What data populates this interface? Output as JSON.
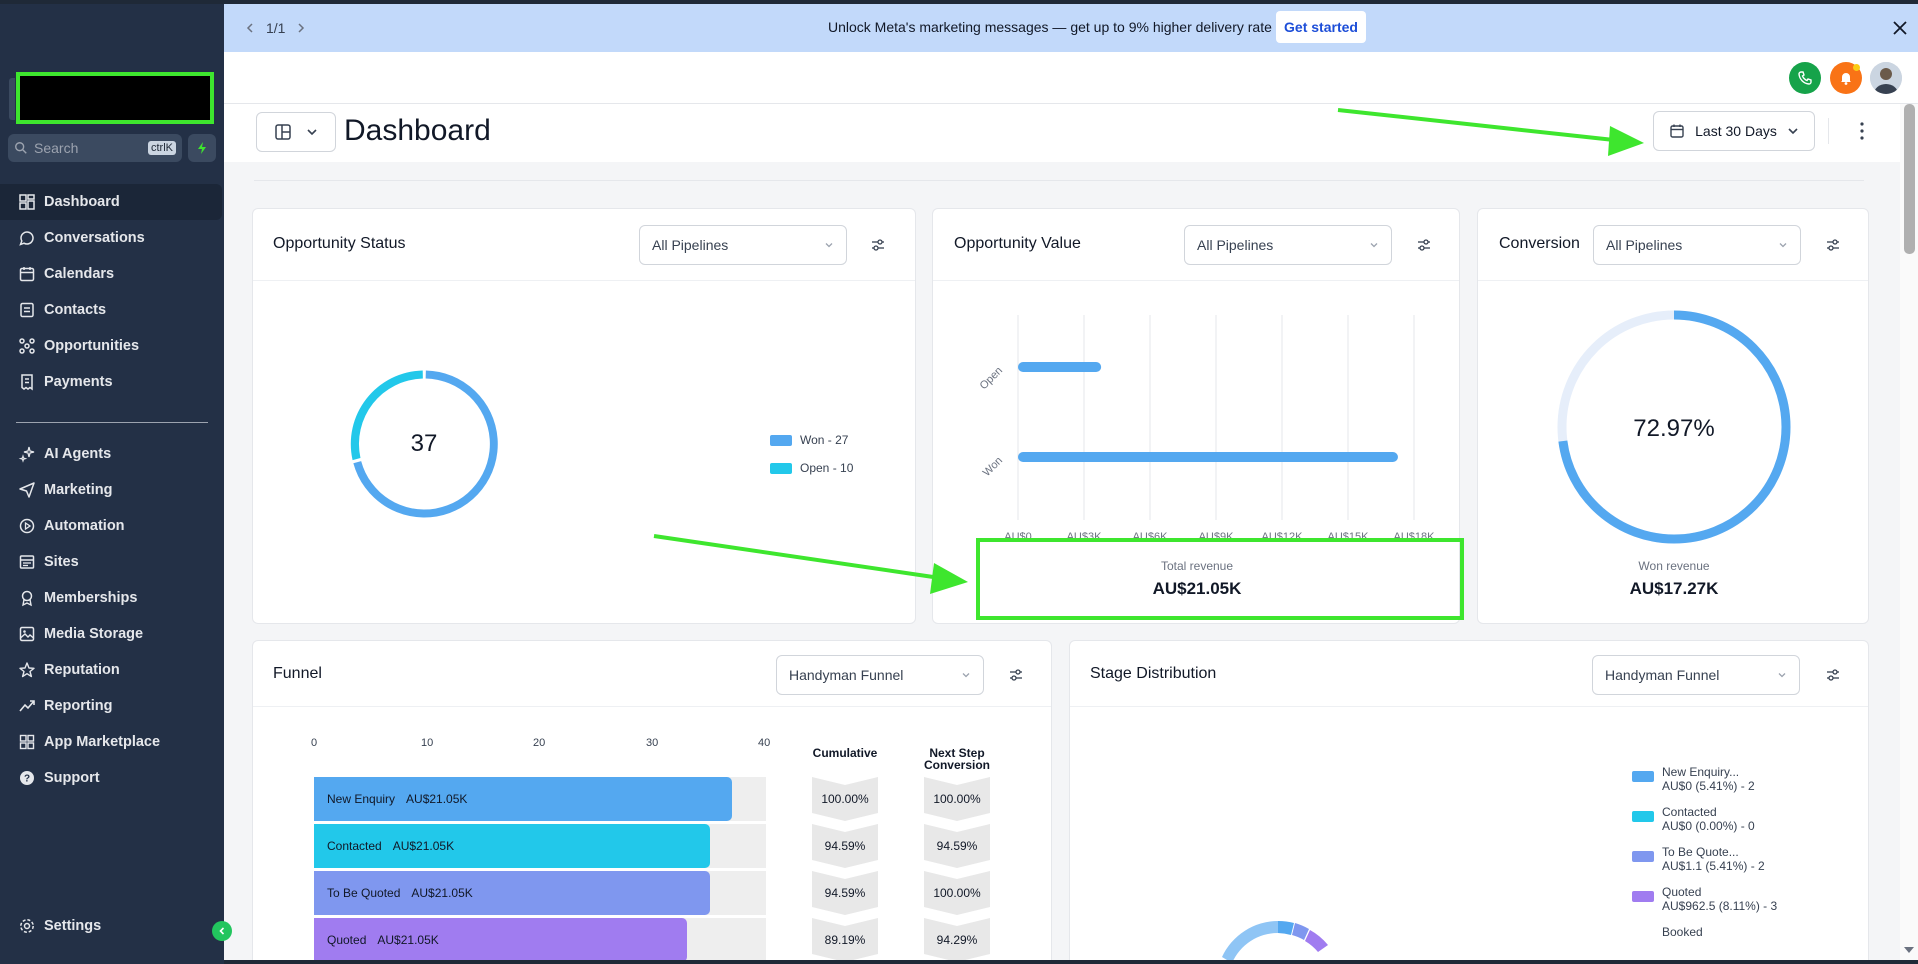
{
  "banner": {
    "pager": "1/1",
    "text": "Unlock Meta's marketing messages — get up to 9% higher delivery rate",
    "cta": "Get started"
  },
  "sidebar": {
    "search_placeholder": "Search",
    "search_shortcut": "ctrlK",
    "items_top": [
      {
        "label": "Dashboard",
        "icon": "grid-icon",
        "active": true
      },
      {
        "label": "Conversations",
        "icon": "chat-icon"
      },
      {
        "label": "Calendars",
        "icon": "calendar-icon"
      },
      {
        "label": "Contacts",
        "icon": "contacts-icon"
      },
      {
        "label": "Opportunities",
        "icon": "opportunities-icon"
      },
      {
        "label": "Payments",
        "icon": "receipt-icon"
      }
    ],
    "items_bottom": [
      {
        "label": "AI Agents",
        "icon": "sparkle-icon"
      },
      {
        "label": "Marketing",
        "icon": "send-icon"
      },
      {
        "label": "Automation",
        "icon": "automation-icon"
      },
      {
        "label": "Sites",
        "icon": "sites-icon"
      },
      {
        "label": "Memberships",
        "icon": "award-icon"
      },
      {
        "label": "Media Storage",
        "icon": "image-icon"
      },
      {
        "label": "Reputation",
        "icon": "star-icon"
      },
      {
        "label": "Reporting",
        "icon": "trend-icon"
      },
      {
        "label": "App Marketplace",
        "icon": "apps-icon"
      },
      {
        "label": "Support",
        "icon": "help-icon"
      }
    ],
    "settings": "Settings"
  },
  "header": {
    "title": "Dashboard",
    "date_range": "Last 30 Days"
  },
  "cards": {
    "opportunity_status": {
      "title": "Opportunity Status",
      "filter": "All Pipelines",
      "total": "37",
      "legend": [
        "Won - 27",
        "Open - 10"
      ]
    },
    "opportunity_value": {
      "title": "Opportunity Value",
      "filter": "All Pipelines",
      "total_label": "Total revenue",
      "total_value": "AU$21.05K"
    },
    "conversion": {
      "title": "Conversion",
      "filter": "All Pipelines",
      "percent": "72.97%",
      "won_label": "Won revenue",
      "won_value": "AU$17.27K"
    },
    "funnel": {
      "title": "Funnel",
      "filter": "Handyman Funnel",
      "axis": [
        "0",
        "10",
        "20",
        "30",
        "40"
      ],
      "cumulative_head": "Cumulative",
      "next_head_1": "Next Step",
      "next_head_2": "Conversion"
    },
    "stage_distribution": {
      "title": "Stage Distribution",
      "filter": "Handyman Funnel",
      "legend": [
        {
          "name": "New Enquiry...",
          "detail": "AU$0 (5.41%) - 2",
          "color": "#54a8f0"
        },
        {
          "name": "Contacted",
          "detail": "AU$0 (0.00%) - 0",
          "color": "#22c8ea"
        },
        {
          "name": "To Be Quote...",
          "detail": "AU$1.1 (5.41%) - 2",
          "color": "#7f97ef"
        },
        {
          "name": "Quoted",
          "detail": "AU$962.5 (8.11%) - 3",
          "color": "#a07cf0"
        },
        {
          "name": "Booked",
          "detail": "",
          "color": "#c084fc"
        }
      ]
    }
  },
  "colors": {
    "sidebar_bg": "#233046",
    "banner_bg": "#c2d9fa",
    "won": "#54a8f0",
    "open": "#22c8ea",
    "annotation": "#3ee62e"
  },
  "chart_data": [
    {
      "type": "pie",
      "title": "Opportunity Status",
      "categories": [
        "Won",
        "Open"
      ],
      "values": [
        27,
        10
      ]
    },
    {
      "type": "bar",
      "title": "Opportunity Value",
      "orientation": "horizontal",
      "categories": [
        "Open",
        "Won"
      ],
      "values": [
        3780,
        17270
      ],
      "xlim": [
        0,
        18000
      ],
      "tick_labels": [
        "AU$0",
        "AU$3K",
        "AU$6K",
        "AU$9K",
        "AU$12K",
        "AU$15K",
        "AU$18K"
      ],
      "grid": true
    },
    {
      "type": "pie",
      "title": "Conversion",
      "values": [
        72.97,
        27.03
      ]
    },
    {
      "type": "bar",
      "title": "Funnel",
      "orientation": "horizontal",
      "categories": [
        "New Enquiry",
        "Contacted",
        "To Be Quoted",
        "Quoted"
      ],
      "values": [
        37,
        35,
        35,
        33
      ],
      "amount_labels": [
        "AU$21.05K",
        "AU$21.05K",
        "AU$21.05K",
        "AU$21.05K"
      ],
      "cumulative": [
        "100.00%",
        "94.59%",
        "94.59%",
        "89.19%"
      ],
      "next_step_conversion": [
        "100.00%",
        "94.59%",
        "100.00%",
        "94.29%"
      ],
      "xlim": [
        0,
        40
      ],
      "colors": [
        "#54a8f0",
        "#22c8ea",
        "#7f97ef",
        "#a07cf0"
      ]
    }
  ]
}
